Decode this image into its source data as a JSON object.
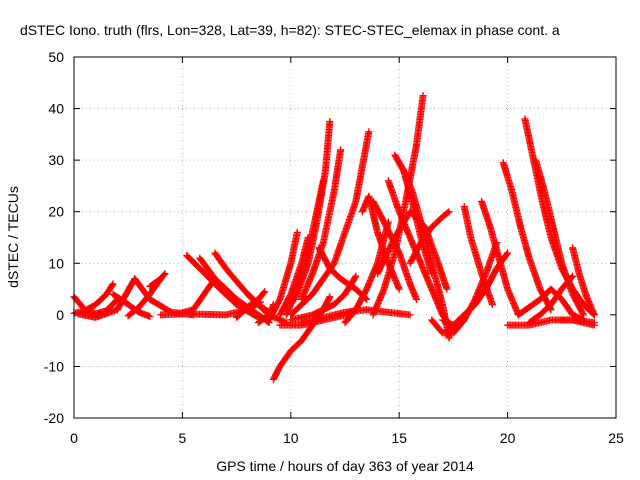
{
  "chart_data": {
    "type": "scatter",
    "title": "dSTEC Iono. truth (flrs, Lon=328, Lat=39, h=82): STEC-STEC_elemax in phase cont. a",
    "xlabel": "GPS time / hours of day 363 of year 2014",
    "ylabel": "dSTEC  / TECUs",
    "xlim": [
      0,
      25
    ],
    "ylim": [
      -20,
      50
    ],
    "xticks": [
      0,
      5,
      10,
      15,
      20,
      25
    ],
    "yticks": [
      -20,
      -10,
      0,
      10,
      20,
      30,
      40,
      50
    ],
    "grid": true,
    "marker": "+",
    "color": "#ff0000",
    "series": [
      {
        "x": [
          0.0,
          0.5,
          1.0,
          1.5,
          2.0
        ],
        "y": [
          3.5,
          1.0,
          0.2,
          0.8,
          3.0
        ]
      },
      {
        "x": [
          0.0,
          0.5,
          1.0,
          1.5,
          1.8
        ],
        "y": [
          0.3,
          0.8,
          2.0,
          4.0,
          6.0
        ]
      },
      {
        "x": [
          0.2,
          1.0,
          2.0,
          2.8
        ],
        "y": [
          0.2,
          -0.5,
          1.0,
          7.0
        ]
      },
      {
        "x": [
          1.8,
          2.5,
          3.0,
          3.5
        ],
        "y": [
          4.0,
          2.0,
          0.5,
          -0.3
        ]
      },
      {
        "x": [
          2.5,
          3.0,
          3.5,
          4.0
        ],
        "y": [
          -0.2,
          1.5,
          4.0,
          7.0
        ]
      },
      {
        "x": [
          2.8,
          3.5,
          4.5,
          5.5
        ],
        "y": [
          7.0,
          3.0,
          0.5,
          0.0
        ]
      },
      {
        "x": [
          3.5,
          4.0,
          4.2
        ],
        "y": [
          5.5,
          7.0,
          8.0
        ]
      },
      {
        "x": [
          4.0,
          5.0,
          6.0,
          7.0,
          8.0,
          8.6
        ],
        "y": [
          0.0,
          0.2,
          0.1,
          0.0,
          1.0,
          2.5
        ]
      },
      {
        "x": [
          4.8,
          5.5,
          6.0,
          6.5
        ],
        "y": [
          0.2,
          1.0,
          4.0,
          7.0
        ]
      },
      {
        "x": [
          5.2,
          5.8,
          6.5,
          7.5,
          8.5
        ],
        "y": [
          11.5,
          9.0,
          6.0,
          2.0,
          -0.5
        ]
      },
      {
        "x": [
          5.8,
          6.5,
          7.5,
          8.5,
          9.0
        ],
        "y": [
          11.0,
          7.0,
          3.0,
          0.0,
          -1.5
        ]
      },
      {
        "x": [
          6.5,
          7.0,
          7.8,
          8.5,
          9.0,
          9.8
        ],
        "y": [
          12.0,
          9.0,
          5.0,
          2.0,
          0.0,
          -1.5
        ]
      },
      {
        "x": [
          7.5,
          8.0,
          8.5,
          8.8
        ],
        "y": [
          -0.5,
          1.5,
          3.0,
          4.5
        ]
      },
      {
        "x": [
          8.0,
          8.5,
          9.0
        ],
        "y": [
          4.0,
          2.0,
          0.5
        ]
      },
      {
        "x": [
          8.5,
          9.0,
          9.2
        ],
        "y": [
          -1.5,
          0.0,
          2.0
        ]
      },
      {
        "x": [
          9.2,
          9.5,
          10.0,
          10.5,
          11.0,
          11.5,
          11.8
        ],
        "y": [
          -12.5,
          -10.0,
          -7.0,
          -5.0,
          -2.0,
          1.0,
          3.5
        ]
      },
      {
        "x": [
          9.0,
          9.5,
          10.0,
          10.3
        ],
        "y": [
          -1.0,
          3.0,
          10.0,
          16.0
        ]
      },
      {
        "x": [
          9.5,
          10.0,
          10.5,
          10.8
        ],
        "y": [
          0.0,
          4.0,
          10.0,
          15.0
        ]
      },
      {
        "x": [
          9.8,
          10.3,
          10.8,
          11.2,
          11.5
        ],
        "y": [
          0.0,
          5.0,
          12.0,
          20.0,
          26.0
        ]
      },
      {
        "x": [
          10.2,
          10.8,
          11.2,
          11.6,
          11.8
        ],
        "y": [
          3.0,
          10.0,
          18.0,
          28.0,
          37.5
        ]
      },
      {
        "x": [
          10.5,
          11.0,
          11.5,
          12.0,
          12.3
        ],
        "y": [
          3.0,
          8.0,
          14.0,
          24.0,
          32.0
        ]
      },
      {
        "x": [
          10.0,
          11.0,
          12.0,
          13.0,
          13.6
        ],
        "y": [
          0.0,
          4.0,
          10.0,
          22.0,
          35.5
        ]
      },
      {
        "x": [
          10.0,
          11.0,
          12.0,
          12.5,
          13.0
        ],
        "y": [
          -1.0,
          0.0,
          2.0,
          4.0,
          7.5
        ]
      },
      {
        "x": [
          9.5,
          10.5,
          11.5,
          12.5,
          13.0
        ],
        "y": [
          -2.0,
          -2.0,
          -1.0,
          0.0,
          1.0
        ]
      },
      {
        "x": [
          11.3,
          11.8,
          12.3,
          13.0,
          13.5
        ],
        "y": [
          13.0,
          9.0,
          7.0,
          5.0,
          3.0
        ]
      },
      {
        "x": [
          10.5,
          11.5,
          12.5,
          13.5,
          14.5,
          15.5
        ],
        "y": [
          -1.5,
          -0.5,
          0.5,
          1.0,
          0.5,
          0.0
        ]
      },
      {
        "x": [
          12.5,
          13.0,
          13.5,
          14.0,
          14.5
        ],
        "y": [
          -1.5,
          1.0,
          5.0,
          10.0,
          18.0
        ]
      },
      {
        "x": [
          13.8,
          14.3,
          14.8,
          15.3,
          15.8,
          16.1
        ],
        "y": [
          0.0,
          5.0,
          12.0,
          22.0,
          33.0,
          42.5
        ]
      },
      {
        "x": [
          13.3,
          13.6,
          14.0,
          14.5,
          15.0
        ],
        "y": [
          20.0,
          23.0,
          16.0,
          10.0,
          5.0
        ]
      },
      {
        "x": [
          13.8,
          14.3,
          15.0,
          15.5,
          15.8
        ],
        "y": [
          22.0,
          18.0,
          12.0,
          6.0,
          3.0
        ]
      },
      {
        "x": [
          14.8,
          15.2,
          15.6,
          16.0,
          16.5
        ],
        "y": [
          31.0,
          28.0,
          22.0,
          15.0,
          8.0
        ]
      },
      {
        "x": [
          15.2,
          15.6,
          16.0,
          16.5,
          17.0,
          17.3
        ],
        "y": [
          28.0,
          24.0,
          18.0,
          10.0,
          2.0,
          -4.5
        ]
      },
      {
        "x": [
          14.5,
          15.0,
          15.5,
          16.0,
          16.5,
          17.0,
          17.5
        ],
        "y": [
          26.0,
          20.0,
          15.0,
          10.0,
          5.0,
          0.0,
          -3.0
        ]
      },
      {
        "x": [
          14.0,
          14.8,
          15.5,
          16.2,
          16.8,
          17.2
        ],
        "y": [
          8.0,
          15.0,
          20.0,
          17.0,
          10.0,
          5.0
        ]
      },
      {
        "x": [
          15.5,
          16.0,
          16.5,
          17.0,
          17.3
        ],
        "y": [
          10.0,
          14.0,
          17.0,
          19.0,
          20.0
        ]
      },
      {
        "x": [
          16.5,
          17.0,
          17.5,
          18.0,
          18.5,
          19.0,
          19.5
        ],
        "y": [
          -1.0,
          -3.5,
          -3.5,
          -1.0,
          3.0,
          8.0,
          14.0
        ]
      },
      {
        "x": [
          17.0,
          17.5,
          18.0,
          18.5,
          19.0,
          19.5,
          20.0
        ],
        "y": [
          -1.0,
          -2.0,
          0.0,
          2.0,
          5.0,
          9.0,
          12.0
        ]
      },
      {
        "x": [
          18.0,
          18.3,
          18.8,
          19.3
        ],
        "y": [
          21.0,
          15.0,
          8.0,
          2.0
        ]
      },
      {
        "x": [
          18.8,
          19.2,
          19.6,
          20.0,
          20.5
        ],
        "y": [
          22.0,
          17.0,
          11.0,
          5.0,
          0.0
        ]
      },
      {
        "x": [
          19.8,
          20.2,
          20.6,
          21.0,
          21.5,
          22.0
        ],
        "y": [
          29.5,
          24.0,
          17.0,
          11.0,
          5.0,
          1.0
        ]
      },
      {
        "x": [
          20.8,
          21.2,
          21.6,
          22.0,
          22.5,
          23.0,
          23.5,
          24.0
        ],
        "y": [
          38.0,
          30.0,
          22.0,
          15.0,
          9.0,
          5.0,
          2.0,
          0.0
        ]
      },
      {
        "x": [
          21.3,
          21.7,
          22.1,
          22.5,
          23.0,
          23.5
        ],
        "y": [
          30.0,
          24.0,
          17.0,
          10.0,
          4.0,
          0.0
        ]
      },
      {
        "x": [
          20.5,
          21.5,
          22.0,
          22.5,
          23.0,
          23.5
        ],
        "y": [
          0.0,
          3.0,
          5.0,
          3.0,
          0.0,
          -1.0
        ]
      },
      {
        "x": [
          21.0,
          21.5,
          22.0,
          22.5,
          23.0
        ],
        "y": [
          -1.5,
          0.0,
          2.0,
          5.0,
          7.5
        ]
      },
      {
        "x": [
          20.0,
          21.0,
          22.0,
          23.0,
          24.0
        ],
        "y": [
          -2.0,
          -2.0,
          -1.0,
          -1.0,
          -1.5
        ]
      },
      {
        "x": [
          23.0,
          23.3,
          23.6,
          24.0
        ],
        "y": [
          13.0,
          8.0,
          4.0,
          0.0
        ]
      },
      {
        "x": [
          22.5,
          23.0,
          23.5,
          24.0
        ],
        "y": [
          -1.0,
          -1.0,
          -1.5,
          -2.0
        ]
      }
    ]
  }
}
